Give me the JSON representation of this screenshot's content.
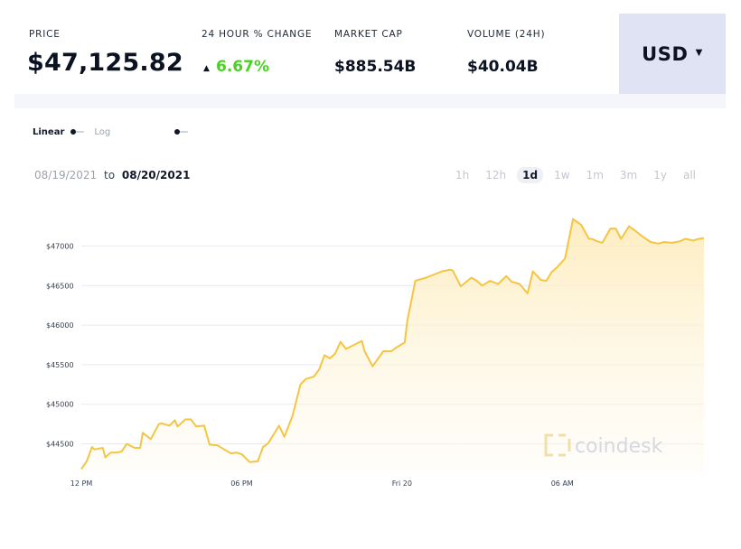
{
  "stats": {
    "price": {
      "label": "PRICE",
      "value": "$47,125.82"
    },
    "change": {
      "label": "24 HOUR % CHANGE",
      "value": "6.67%",
      "direction": "up",
      "color": "#47d31f"
    },
    "market_cap": {
      "label": "MARKET CAP",
      "value": "$885.54B"
    },
    "volume": {
      "label": "VOLUME (24H)",
      "value": "$40.04B"
    }
  },
  "currency": {
    "selected": "USD"
  },
  "scale": {
    "linear_label": "Linear",
    "log_label": "Log",
    "selected": "Linear"
  },
  "date_range": {
    "start": "08/19/2021",
    "to": "to",
    "end": "08/20/2021"
  },
  "ranges": [
    {
      "label": "1h",
      "active": false
    },
    {
      "label": "12h",
      "active": false
    },
    {
      "label": "1d",
      "active": true
    },
    {
      "label": "1w",
      "active": false
    },
    {
      "label": "1m",
      "active": false
    },
    {
      "label": "3m",
      "active": false
    },
    {
      "label": "1y",
      "active": false
    },
    {
      "label": "all",
      "active": false
    }
  ],
  "watermark": "coindesk",
  "colors": {
    "line": "#f5c542",
    "fill_top": "#fdebb8",
    "grid": "#e7eaf0",
    "accent_btn": "#dfe3f4"
  },
  "chart_data": {
    "type": "area",
    "title": "",
    "xlabel": "",
    "ylabel": "",
    "x_tick_labels": [
      "12 PM",
      "06 PM",
      "Fri 20",
      "06 AM"
    ],
    "x_tick_hours": [
      0,
      6,
      12,
      18
    ],
    "y_tick_labels": [
      "$44500",
      "$45000",
      "$45500",
      "$46000",
      "$46500",
      "$47000"
    ],
    "y_ticks": [
      44500,
      45000,
      45500,
      46000,
      46500,
      47000
    ],
    "ylim": [
      44130,
      47370
    ],
    "xlim": [
      0,
      23.3
    ],
    "grid": true,
    "series": [
      {
        "x": [
          0,
          0.2,
          0.4,
          0.5,
          0.8,
          0.9,
          1.1,
          1.3,
          1.5,
          1.7,
          2.0,
          2.2,
          2.3,
          2.6,
          2.9,
          3.0,
          3.3,
          3.5,
          3.6,
          3.9,
          4.1,
          4.3,
          4.6,
          4.8,
          5.1,
          5.6,
          5.8,
          6.0,
          6.3,
          6.6,
          6.8,
          7.0,
          7.2,
          7.4,
          7.6,
          7.9,
          8.2,
          8.4,
          8.7,
          8.9,
          9.1,
          9.3,
          9.5,
          9.7,
          9.9,
          10.2,
          10.5,
          10.6,
          10.9,
          11.3,
          11.6,
          11.8,
          12.1,
          12.2,
          12.5,
          12.9,
          13.2,
          13.5,
          13.8,
          13.9,
          14.2,
          14.6,
          14.8,
          15.0,
          15.3,
          15.6,
          15.9,
          16.1,
          16.4,
          16.7,
          16.9,
          17.2,
          17.4,
          17.6,
          17.8,
          18.1,
          18.4,
          18.7,
          19.0,
          19.1,
          19.3,
          19.5,
          19.8,
          20.0,
          20.2,
          20.5,
          20.7,
          21.0,
          21.3,
          21.6,
          21.8,
          22.1,
          22.4,
          22.6,
          22.9,
          23.1,
          23.3
        ],
        "y": [
          44180,
          44280,
          44460,
          44430,
          44450,
          44330,
          44390,
          44390,
          44400,
          44500,
          44450,
          44450,
          44640,
          44560,
          44750,
          44760,
          44730,
          44800,
          44720,
          44810,
          44810,
          44720,
          44730,
          44490,
          44480,
          44380,
          44390,
          44370,
          44270,
          44280,
          44460,
          44510,
          44620,
          44730,
          44590,
          44850,
          45250,
          45320,
          45350,
          45440,
          45620,
          45580,
          45640,
          45790,
          45700,
          45750,
          45800,
          45670,
          45480,
          45670,
          45670,
          45720,
          45780,
          46060,
          46560,
          46600,
          46640,
          46680,
          46700,
          46690,
          46490,
          46600,
          46560,
          46500,
          46560,
          46520,
          46620,
          46550,
          46520,
          46400,
          46680,
          46570,
          46560,
          46670,
          46730,
          46840,
          47340,
          47270,
          47090,
          47090,
          47060,
          47040,
          47220,
          47220,
          47090,
          47250,
          47200,
          47120,
          47050,
          47030,
          47050,
          47040,
          47060,
          47090,
          47070,
          47090,
          47100
        ],
        "color": "#f5c542"
      }
    ]
  }
}
